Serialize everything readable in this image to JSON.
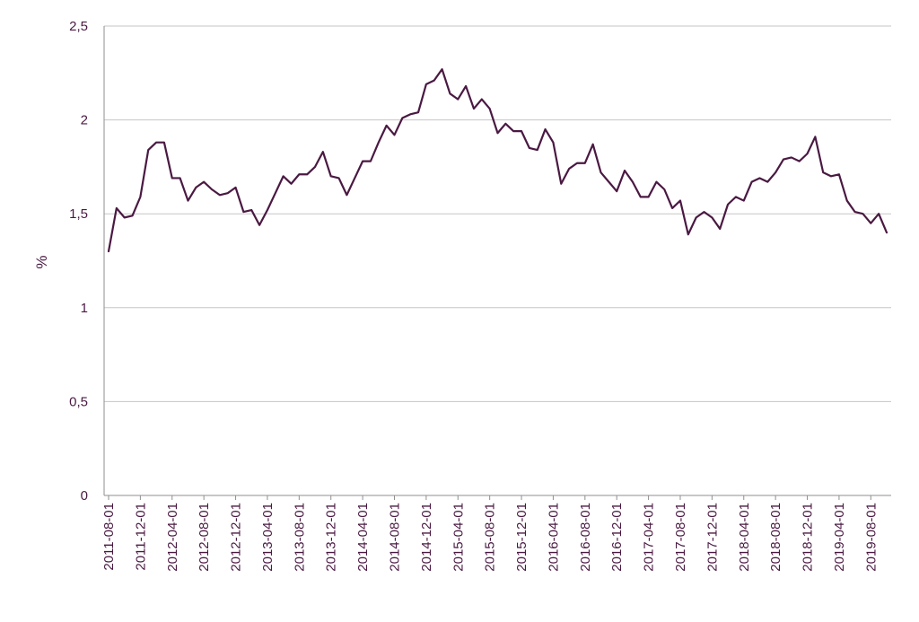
{
  "chart_data": {
    "type": "line",
    "ylabel": "%",
    "ylim": [
      0,
      2.5
    ],
    "y_ticks": [
      "0",
      "0,5",
      "1",
      "1,5",
      "2",
      "2,5"
    ],
    "y_tick_values": [
      0,
      0.5,
      1,
      1.5,
      2,
      2.5
    ],
    "grid": "horizontal",
    "line_color": "#4a1942",
    "x_tick_labels": [
      "2011-08-01",
      "2011-12-01",
      "2012-04-01",
      "2012-08-01",
      "2012-12-01",
      "2013-04-01",
      "2013-08-01",
      "2013-12-01",
      "2014-04-01",
      "2014-08-01",
      "2014-12-01",
      "2015-04-01",
      "2015-08-01",
      "2015-12-01",
      "2016-04-01",
      "2016-08-01",
      "2016-12-01",
      "2017-04-01",
      "2017-08-01",
      "2017-12-01",
      "2018-04-01",
      "2018-08-01",
      "2018-12-01",
      "2019-04-01",
      "2019-08-01"
    ],
    "x_start": "2011-08-01",
    "series": [
      {
        "values": [
          1.3,
          1.53,
          1.48,
          1.49,
          1.59,
          1.84,
          1.88,
          1.88,
          1.69,
          1.69,
          1.57,
          1.64,
          1.67,
          1.63,
          1.6,
          1.61,
          1.64,
          1.51,
          1.52,
          1.44,
          1.52,
          1.61,
          1.7,
          1.66,
          1.71,
          1.71,
          1.75,
          1.83,
          1.7,
          1.69,
          1.6,
          1.69,
          1.78,
          1.78,
          1.88,
          1.97,
          1.92,
          2.01,
          2.03,
          2.04,
          2.19,
          2.21,
          2.27,
          2.14,
          2.11,
          2.18,
          2.06,
          2.11,
          2.06,
          1.93,
          1.98,
          1.94,
          1.94,
          1.85,
          1.84,
          1.95,
          1.88,
          1.66,
          1.74,
          1.77,
          1.77,
          1.87,
          1.72,
          1.67,
          1.62,
          1.73,
          1.67,
          1.59,
          1.59,
          1.67,
          1.63,
          1.53,
          1.57,
          1.39,
          1.48,
          1.51,
          1.48,
          1.42,
          1.55,
          1.59,
          1.57,
          1.67,
          1.69,
          1.67,
          1.72,
          1.79,
          1.8,
          1.78,
          1.82,
          1.91,
          1.72,
          1.7,
          1.71,
          1.57,
          1.51,
          1.5,
          1.45,
          1.5,
          1.4
        ]
      }
    ]
  }
}
